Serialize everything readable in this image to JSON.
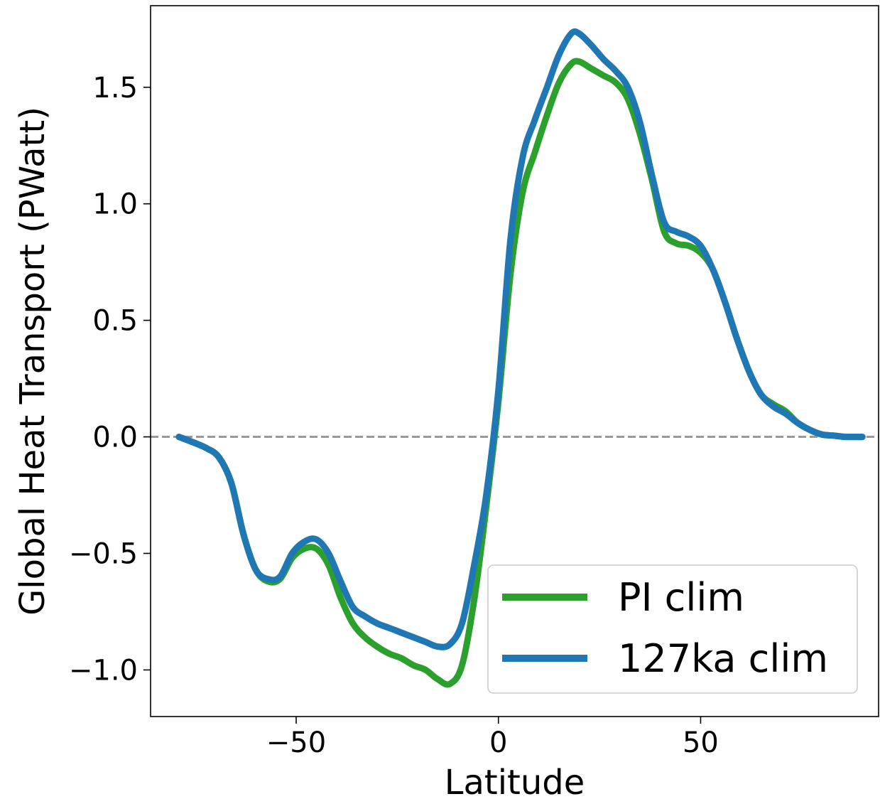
{
  "chart_data": {
    "type": "line",
    "title": "",
    "xlabel": "Latitude",
    "ylabel": "Global Heat Transport (PWatt)",
    "xlim": [
      -86,
      94
    ],
    "ylim": [
      -1.2,
      1.85
    ],
    "xticks": [
      {
        "value": -50,
        "label": "−50"
      },
      {
        "value": 0,
        "label": "0"
      },
      {
        "value": 50,
        "label": "50"
      }
    ],
    "yticks": [
      {
        "value": -1.0,
        "label": "−1.0"
      },
      {
        "value": -0.5,
        "label": "−0.5"
      },
      {
        "value": 0.0,
        "label": "0.0"
      },
      {
        "value": 0.5,
        "label": "0.5"
      },
      {
        "value": 1.0,
        "label": "1.0"
      },
      {
        "value": 1.5,
        "label": "1.5"
      }
    ],
    "grid": false,
    "reference_line": {
      "y": 0,
      "style": "dashed",
      "color": "#999999"
    },
    "legend_position": "lower-right",
    "series": [
      {
        "name": "PI clim",
        "color": "#2ca02c",
        "x": [
          -79,
          -76,
          -72,
          -69,
          -66,
          -63,
          -60,
          -57,
          -54,
          -51,
          -48,
          -45,
          -42,
          -39,
          -36,
          -33,
          -30,
          -27,
          -24,
          -21,
          -18,
          -15,
          -12,
          -9,
          -6,
          -3,
          0,
          3,
          6,
          9,
          12,
          15,
          18,
          20,
          23,
          26,
          29,
          32,
          35,
          38,
          41,
          44,
          47,
          50,
          53,
          56,
          59,
          62,
          65,
          68,
          71,
          74,
          77,
          80,
          83,
          86,
          90
        ],
        "y": [
          0.0,
          -0.02,
          -0.05,
          -0.09,
          -0.2,
          -0.42,
          -0.57,
          -0.62,
          -0.61,
          -0.52,
          -0.48,
          -0.48,
          -0.55,
          -0.69,
          -0.8,
          -0.86,
          -0.9,
          -0.93,
          -0.95,
          -0.98,
          -1.0,
          -1.04,
          -1.06,
          -0.98,
          -0.7,
          -0.3,
          0.15,
          0.7,
          1.05,
          1.22,
          1.38,
          1.52,
          1.6,
          1.61,
          1.58,
          1.55,
          1.52,
          1.45,
          1.3,
          1.1,
          0.88,
          0.83,
          0.82,
          0.79,
          0.72,
          0.58,
          0.42,
          0.28,
          0.18,
          0.14,
          0.11,
          0.06,
          0.03,
          0.01,
          0.005,
          0.0,
          0.0
        ]
      },
      {
        "name": "127ka clim",
        "color": "#1f77b4",
        "x": [
          -79,
          -76,
          -72,
          -69,
          -66,
          -63,
          -60,
          -57,
          -54,
          -51,
          -48,
          -45,
          -42,
          -39,
          -36,
          -33,
          -30,
          -27,
          -24,
          -21,
          -18,
          -15,
          -12,
          -9,
          -6,
          -3,
          0,
          3,
          6,
          9,
          12,
          15,
          18,
          20,
          23,
          26,
          29,
          32,
          35,
          38,
          41,
          44,
          47,
          50,
          53,
          56,
          59,
          62,
          65,
          68,
          71,
          74,
          77,
          80,
          83,
          86,
          90
        ],
        "y": [
          0.0,
          -0.02,
          -0.05,
          -0.09,
          -0.2,
          -0.42,
          -0.57,
          -0.61,
          -0.6,
          -0.5,
          -0.45,
          -0.44,
          -0.5,
          -0.62,
          -0.73,
          -0.77,
          -0.8,
          -0.82,
          -0.84,
          -0.86,
          -0.88,
          -0.9,
          -0.89,
          -0.8,
          -0.55,
          -0.25,
          0.2,
          0.85,
          1.2,
          1.36,
          1.5,
          1.64,
          1.73,
          1.73,
          1.68,
          1.62,
          1.57,
          1.5,
          1.35,
          1.12,
          0.92,
          0.88,
          0.86,
          0.82,
          0.72,
          0.58,
          0.42,
          0.28,
          0.18,
          0.13,
          0.1,
          0.06,
          0.03,
          0.01,
          0.005,
          0.0,
          0.0
        ]
      }
    ]
  }
}
